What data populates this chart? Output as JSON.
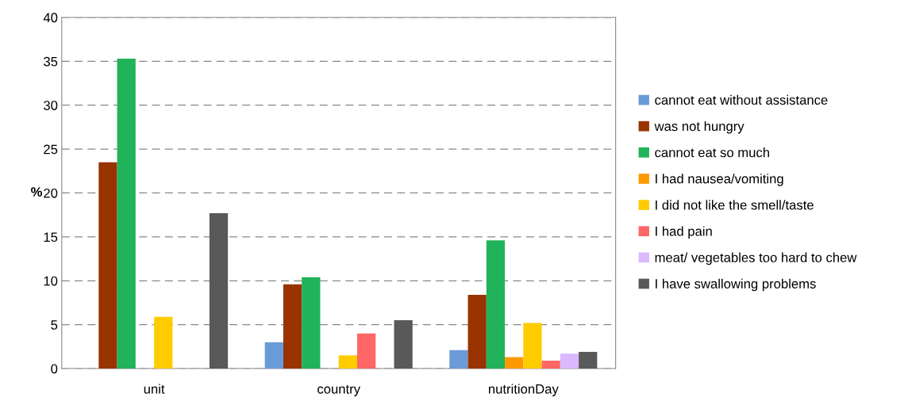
{
  "chart_data": {
    "type": "bar",
    "ylabel": "%",
    "categories": [
      "unit",
      "country",
      "nutritionDay"
    ],
    "series": [
      {
        "name": "cannot eat without assistance",
        "color": "#6a9bd8",
        "values": [
          0,
          3.0,
          2.1
        ]
      },
      {
        "name": "was not hungry",
        "color": "#993300",
        "values": [
          23.5,
          9.6,
          8.4
        ]
      },
      {
        "name": "cannot eat so much",
        "color": "#21b35a",
        "values": [
          35.3,
          10.4,
          14.6
        ]
      },
      {
        "name": "I had nausea/vomiting",
        "color": "#ff9900",
        "values": [
          0,
          0,
          1.3
        ]
      },
      {
        "name": "I did not like the smell/taste",
        "color": "#ffcc00",
        "values": [
          5.9,
          1.5,
          5.2
        ]
      },
      {
        "name": "I had pain",
        "color": "#ff6666",
        "values": [
          0,
          4.0,
          0.9
        ]
      },
      {
        "name": "meat/ vegetables too hard to chew",
        "color": "#dcb8ff",
        "values": [
          0,
          0,
          1.7
        ]
      },
      {
        "name": "I have swallowing problems",
        "color": "#595959",
        "values": [
          17.7,
          5.5,
          1.9
        ]
      }
    ],
    "ylim": [
      0,
      40
    ],
    "yticks": [
      0,
      5,
      10,
      15,
      20,
      25,
      30,
      35,
      40
    ],
    "grid": "y",
    "legend": "right"
  }
}
